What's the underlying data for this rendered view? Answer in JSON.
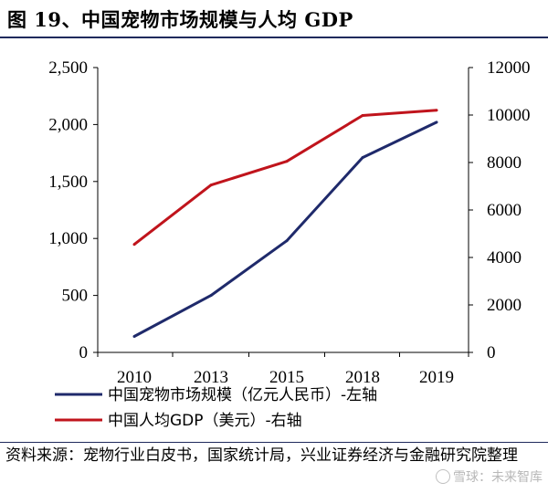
{
  "header": {
    "title": "图 19、中国宠物市场规模与人均 GDP"
  },
  "footer": {
    "source": "资料来源：宠物行业白皮书，国家统计局，兴业证券经济与金融研究院整理",
    "watermark": "雪球：未来智库"
  },
  "colors": {
    "series_market": "#1f2a6b",
    "series_gdp": "#c0141c",
    "rule": "#1f2a5c"
  },
  "chart_data": {
    "type": "line",
    "categories": [
      "2010",
      "2013",
      "2015",
      "2018",
      "2019"
    ],
    "series": [
      {
        "name": "中国宠物市场规模（亿元人民币）-左轴",
        "axis": "left",
        "color": "#1f2a6b",
        "values": [
          140,
          500,
          980,
          1710,
          2020
        ]
      },
      {
        "name": "中国人均GDP（美元）-右轴",
        "axis": "right",
        "color": "#c0141c",
        "values": [
          4550,
          7050,
          8050,
          9980,
          10200
        ]
      }
    ],
    "y_left": {
      "ylim": [
        0,
        2500
      ],
      "ticks": [
        "0",
        "500",
        "1,000",
        "1,500",
        "2,000",
        "2,500"
      ]
    },
    "y_right": {
      "ylim": [
        0,
        12000
      ],
      "ticks": [
        "0",
        "2000",
        "4000",
        "6000",
        "8000",
        "10000",
        "12000"
      ]
    },
    "legend_position": "bottom",
    "grid": false
  }
}
